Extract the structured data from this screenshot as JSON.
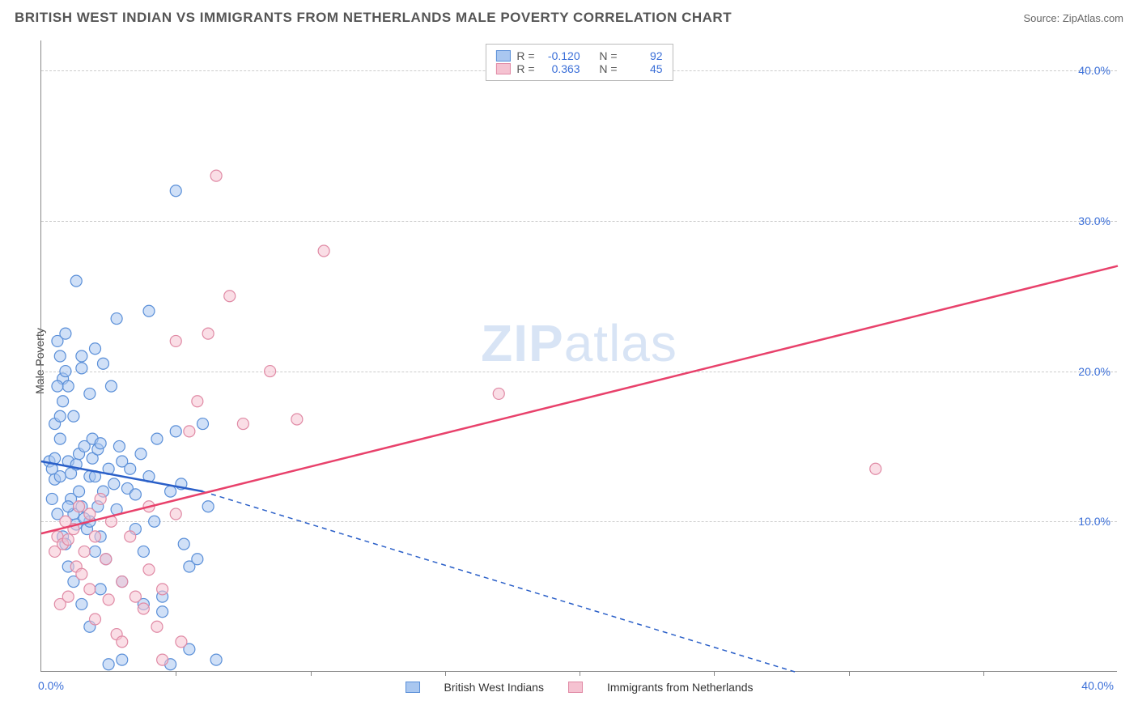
{
  "header": {
    "title": "BRITISH WEST INDIAN VS IMMIGRANTS FROM NETHERLANDS MALE POVERTY CORRELATION CHART",
    "source": "Source: ZipAtlas.com"
  },
  "chart": {
    "type": "scatter",
    "ylabel": "Male Poverty",
    "watermark_bold": "ZIP",
    "watermark_rest": "atlas",
    "background_color": "#ffffff",
    "grid_color": "#cccccc",
    "axis_color": "#888888",
    "tick_color": "#3b6fd8",
    "xlim": [
      0,
      40
    ],
    "ylim": [
      0,
      42
    ],
    "yticks": [
      10,
      20,
      30,
      40
    ],
    "ytick_labels": [
      "10.0%",
      "20.0%",
      "30.0%",
      "40.0%"
    ],
    "xtick_minor": [
      5,
      10,
      15,
      20,
      25,
      30,
      35
    ],
    "xtick_left": "0.0%",
    "xtick_right": "40.0%",
    "marker_radius": 7,
    "marker_opacity": 0.55,
    "marker_stroke_width": 1.2,
    "trend_line_width": 2.5,
    "legend_top": {
      "rows": [
        {
          "r_label": "R =",
          "r_value": "-0.120",
          "n_label": "N =",
          "n_value": "92"
        },
        {
          "r_label": "R =",
          "r_value": "0.363",
          "n_label": "N =",
          "n_value": "45"
        }
      ]
    },
    "legend_bottom": {
      "items": [
        {
          "label": "British West Indians"
        },
        {
          "label": "Immigrants from Netherlands"
        }
      ]
    },
    "series": [
      {
        "name": "British West Indians",
        "fill": "#a9c7f0",
        "stroke": "#5a8fd8",
        "trend_color": "#2a5fc8",
        "trend": {
          "x1": 0,
          "y1": 14,
          "x2_solid": 6,
          "y2_solid": 12,
          "x2": 28,
          "y2": 0
        },
        "points": [
          [
            0.3,
            14
          ],
          [
            0.4,
            13.5
          ],
          [
            0.5,
            12.8
          ],
          [
            0.5,
            14.2
          ],
          [
            0.6,
            22
          ],
          [
            0.7,
            13
          ],
          [
            0.7,
            21
          ],
          [
            0.8,
            19.5
          ],
          [
            0.8,
            18
          ],
          [
            0.9,
            22.5
          ],
          [
            0.9,
            20
          ],
          [
            1.0,
            14
          ],
          [
            1.0,
            19
          ],
          [
            1.1,
            13.2
          ],
          [
            1.1,
            11.5
          ],
          [
            1.2,
            10.5
          ],
          [
            1.2,
            17
          ],
          [
            1.3,
            26
          ],
          [
            1.3,
            13.8
          ],
          [
            1.4,
            12
          ],
          [
            1.4,
            14.5
          ],
          [
            1.5,
            21
          ],
          [
            1.5,
            20.2
          ],
          [
            1.5,
            11
          ],
          [
            1.6,
            15
          ],
          [
            1.7,
            9.5
          ],
          [
            1.8,
            13
          ],
          [
            1.8,
            18.5
          ],
          [
            1.8,
            10
          ],
          [
            1.9,
            14.2
          ],
          [
            1.9,
            15.5
          ],
          [
            2.0,
            21.5
          ],
          [
            2.0,
            13
          ],
          [
            2.0,
            8
          ],
          [
            2.1,
            11
          ],
          [
            2.1,
            14.8
          ],
          [
            2.2,
            15.2
          ],
          [
            2.2,
            9
          ],
          [
            2.3,
            20.5
          ],
          [
            2.3,
            12
          ],
          [
            2.4,
            7.5
          ],
          [
            2.5,
            0.5
          ],
          [
            2.5,
            13.5
          ],
          [
            2.6,
            19
          ],
          [
            2.7,
            12.5
          ],
          [
            2.8,
            23.5
          ],
          [
            2.8,
            10.8
          ],
          [
            2.9,
            15
          ],
          [
            3.0,
            6
          ],
          [
            3.0,
            0.8
          ],
          [
            3.0,
            14
          ],
          [
            3.2,
            12.2
          ],
          [
            3.3,
            13.5
          ],
          [
            3.5,
            9.5
          ],
          [
            3.5,
            11.8
          ],
          [
            3.7,
            14.5
          ],
          [
            3.8,
            8
          ],
          [
            3.8,
            4.5
          ],
          [
            4.0,
            24
          ],
          [
            4.0,
            13
          ],
          [
            4.2,
            10
          ],
          [
            4.3,
            15.5
          ],
          [
            4.5,
            4
          ],
          [
            4.5,
            5
          ],
          [
            4.8,
            0.5
          ],
          [
            4.8,
            12
          ],
          [
            5.0,
            16
          ],
          [
            5.0,
            32
          ],
          [
            5.2,
            12.5
          ],
          [
            5.3,
            8.5
          ],
          [
            5.5,
            1.5
          ],
          [
            5.5,
            7
          ],
          [
            5.8,
            7.5
          ],
          [
            6.0,
            16.5
          ],
          [
            6.2,
            11
          ],
          [
            6.5,
            0.8
          ],
          [
            1.0,
            7
          ],
          [
            1.2,
            6
          ],
          [
            1.5,
            4.5
          ],
          [
            1.8,
            3
          ],
          [
            2.2,
            5.5
          ],
          [
            0.6,
            10.5
          ],
          [
            0.8,
            9
          ],
          [
            0.9,
            8.5
          ],
          [
            1.0,
            11
          ],
          [
            1.3,
            9.8
          ],
          [
            1.6,
            10.2
          ],
          [
            0.5,
            16.5
          ],
          [
            0.7,
            15.5
          ],
          [
            0.4,
            11.5
          ],
          [
            0.6,
            19
          ],
          [
            0.7,
            17
          ]
        ]
      },
      {
        "name": "Immigrants from Netherlands",
        "fill": "#f5c2d1",
        "stroke": "#e08aa5",
        "trend_color": "#e8416b",
        "trend": {
          "x1": 0,
          "y1": 9.2,
          "x2_solid": 40,
          "y2_solid": 27,
          "x2": 40,
          "y2": 27
        },
        "points": [
          [
            0.5,
            8
          ],
          [
            0.6,
            9
          ],
          [
            0.7,
            4.5
          ],
          [
            0.8,
            8.5
          ],
          [
            0.9,
            10
          ],
          [
            1.0,
            8.8
          ],
          [
            1.0,
            5
          ],
          [
            1.2,
            9.5
          ],
          [
            1.3,
            7
          ],
          [
            1.4,
            11
          ],
          [
            1.5,
            6.5
          ],
          [
            1.6,
            8
          ],
          [
            1.8,
            10.5
          ],
          [
            1.8,
            5.5
          ],
          [
            2.0,
            9
          ],
          [
            2.0,
            3.5
          ],
          [
            2.2,
            11.5
          ],
          [
            2.4,
            7.5
          ],
          [
            2.5,
            4.8
          ],
          [
            2.6,
            10
          ],
          [
            2.8,
            2.5
          ],
          [
            3.0,
            6
          ],
          [
            3.0,
            2
          ],
          [
            3.3,
            9
          ],
          [
            3.5,
            5
          ],
          [
            3.8,
            4.2
          ],
          [
            4.0,
            6.8
          ],
          [
            4.3,
            3
          ],
          [
            4.5,
            5.5
          ],
          [
            4.5,
            0.8
          ],
          [
            5.0,
            22
          ],
          [
            5.0,
            10.5
          ],
          [
            5.2,
            2
          ],
          [
            5.5,
            16
          ],
          [
            5.8,
            18
          ],
          [
            6.5,
            33
          ],
          [
            7.0,
            25
          ],
          [
            7.5,
            16.5
          ],
          [
            8.5,
            20
          ],
          [
            9.5,
            16.8
          ],
          [
            10.5,
            28
          ],
          [
            17,
            18.5
          ],
          [
            31,
            13.5
          ],
          [
            6.2,
            22.5
          ],
          [
            4.0,
            11
          ]
        ]
      }
    ]
  }
}
